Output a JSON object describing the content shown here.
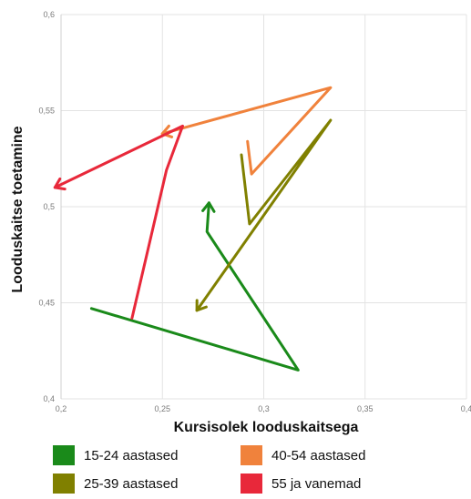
{
  "chart_data": {
    "type": "line",
    "title": "",
    "xlabel": "Kursisolek looduskaitsega",
    "ylabel": "Looduskaitse toetamine",
    "xlim": [
      0.2,
      0.4
    ],
    "ylim": [
      0.4,
      0.6
    ],
    "x_ticks": [
      "0,2",
      "0,25",
      "0,3",
      "0,35",
      "0,4"
    ],
    "y_ticks": [
      "0,4",
      "0,45",
      "0,5",
      "0,55",
      "0,6"
    ],
    "grid": true,
    "legend_position": "bottom",
    "series": [
      {
        "name": "15-24 aastased",
        "color": "#1a8a1a",
        "points": [
          [
            0.215,
            0.447
          ],
          [
            0.317,
            0.415
          ],
          [
            0.272,
            0.487
          ],
          [
            0.273,
            0.502
          ]
        ]
      },
      {
        "name": "25-39 aastased",
        "color": "#808000",
        "points": [
          [
            0.289,
            0.527
          ],
          [
            0.293,
            0.491
          ],
          [
            0.333,
            0.545
          ],
          [
            0.267,
            0.446
          ]
        ]
      },
      {
        "name": "40-54 aastased",
        "color": "#f0823c",
        "points": [
          [
            0.292,
            0.534
          ],
          [
            0.294,
            0.517
          ],
          [
            0.333,
            0.562
          ],
          [
            0.25,
            0.538
          ]
        ]
      },
      {
        "name": "55 ja vanemad",
        "color": "#e8283a",
        "points": [
          [
            0.235,
            0.442
          ],
          [
            0.252,
            0.519
          ],
          [
            0.26,
            0.542
          ],
          [
            0.197,
            0.51
          ]
        ]
      }
    ]
  }
}
